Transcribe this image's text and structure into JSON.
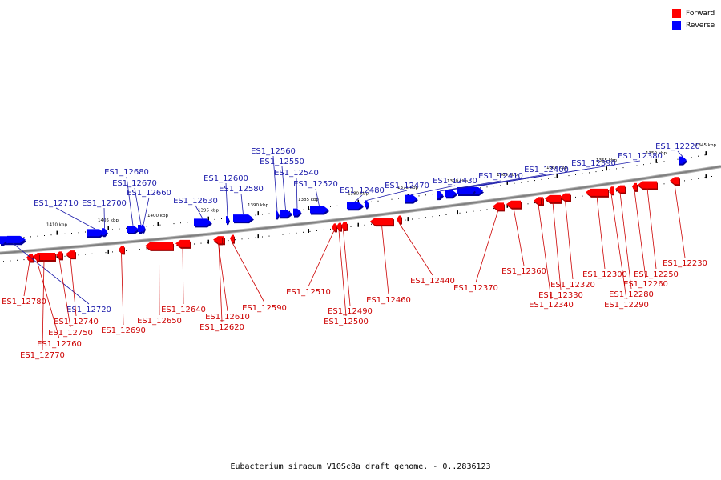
{
  "legend": [
    {
      "label": "Forward",
      "color": "#ff0000"
    },
    {
      "label": "Reverse",
      "color": "#0000ff"
    }
  ],
  "caption": "Eubacterium siraeum V10Sc8a draft genome. - 0..2836123",
  "colors": {
    "forward": "#ff0000",
    "reverse": "#0000ff",
    "backbone": "#808080",
    "label_forward": "#cc0000",
    "label_reverse": "#1a1aaa"
  },
  "scale_labels": [
    "1410 kbp",
    "1405 kbp",
    "1400 kbp",
    "1395 kbp",
    "1390 kbp",
    "1385 kbp",
    "1380 kbp",
    "1375 kbp",
    "1370 kbp",
    "1365 kbp",
    "1360 kbp",
    "1355 kbp",
    "1350 kbp",
    "1345 kbp"
  ],
  "reverse_genes": [
    "ES1_12710",
    "ES1_12700",
    "ES1_12680",
    "ES1_12670",
    "ES1_12660",
    "ES1_12630",
    "ES1_12600",
    "ES1_12580",
    "ES1_12560",
    "ES1_12550",
    "ES1_12540",
    "ES1_12520",
    "ES1_12480",
    "ES1_12470",
    "ES1_12430",
    "ES1_12410",
    "ES1_12400",
    "ES1_12390",
    "ES1_12380",
    "ES1_12220",
    "ES1_12720"
  ],
  "forward_genes": [
    "ES1_12780",
    "ES1_12770",
    "ES1_12760",
    "ES1_12750",
    "ES1_12740",
    "ES1_12690",
    "ES1_12650",
    "ES1_12640",
    "ES1_12620",
    "ES1_12610",
    "ES1_12590",
    "ES1_12510",
    "ES1_12500",
    "ES1_12490",
    "ES1_12460",
    "ES1_12440",
    "ES1_12370",
    "ES1_12360",
    "ES1_12340",
    "ES1_12330",
    "ES1_12320",
    "ES1_12300",
    "ES1_12290",
    "ES1_12280",
    "ES1_12260",
    "ES1_12250",
    "ES1_12230"
  ]
}
